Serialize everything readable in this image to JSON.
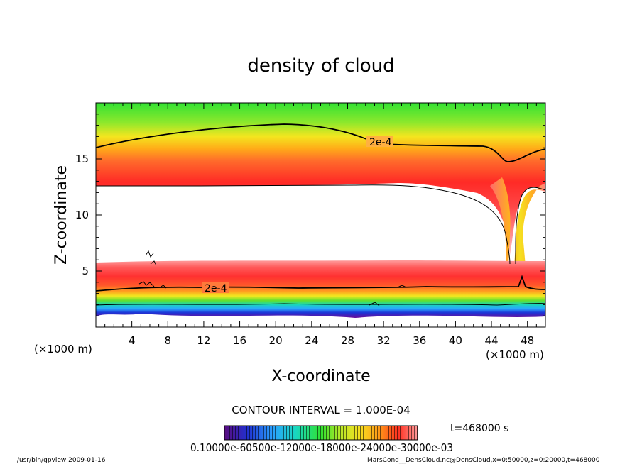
{
  "chart_data": {
    "type": "heatmap",
    "title": "density of cloud",
    "xlabel": "X-coordinate",
    "ylabel": "Z-coordinate",
    "x_unit": "(×1000 m)",
    "y_unit": "(×1000 m)",
    "xlim": [
      0,
      50
    ],
    "ylim": [
      0,
      20
    ],
    "xticks": [
      "4",
      "8",
      "12",
      "16",
      "20",
      "24",
      "28",
      "32",
      "36",
      "40",
      "44",
      "48"
    ],
    "yticks": [
      "5",
      "10",
      "15"
    ],
    "contour_interval_text": "CONTOUR INTERVAL = 1.000E-04",
    "time_text": "t=468000 s",
    "contour_labels": [
      "2e-4",
      "2e-4"
    ],
    "colorbar_labels_text": "0.10000e-60500e-12000e-18000e-24000e-30000e-03",
    "footer_left": "/usr/bin/gpview   2009-01-16",
    "footer_right": "MarsCond__DensCloud.nc@DensCloud,x=0:50000,z=0:20000,t=468000",
    "colors": [
      "#6a0d9a",
      "#1f2fd8",
      "#2aa0ff",
      "#19d6c4",
      "#2fe02f",
      "#9be82a",
      "#f5e81f",
      "#ffa515",
      "#ff6a2a",
      "#ff2020",
      "#ff6a6a",
      "#ffb4b4"
    ]
  }
}
